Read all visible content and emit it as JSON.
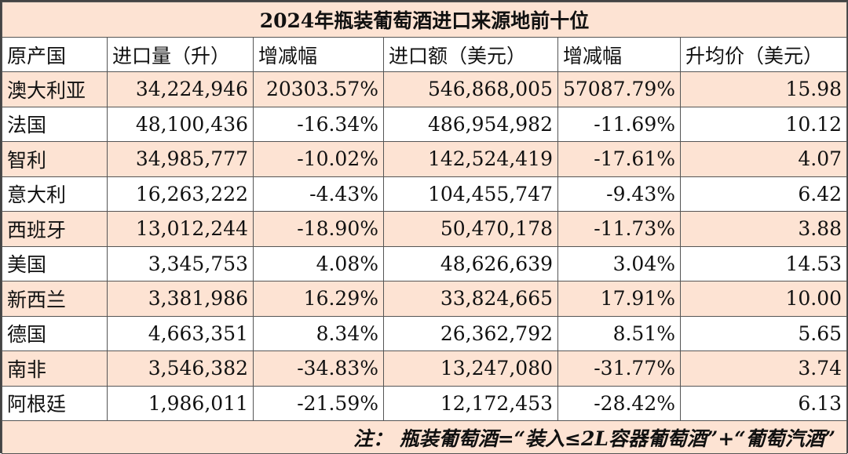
{
  "title": "2024年瓶装葡萄酒进口来源地前十位",
  "headers": [
    "原产国",
    "进口量（升）",
    "增减幅",
    "进口额（美元）",
    "增减幅",
    "升均价（美元）"
  ],
  "rows": [
    [
      "澳大利亚",
      "34,224,946",
      "20303.57%",
      "546,868,005",
      "57087.79%",
      "15.98"
    ],
    [
      "法国",
      "48,100,436",
      "-16.34%",
      "486,954,982",
      "-11.69%",
      "10.12"
    ],
    [
      "智利",
      "34,985,777",
      "-10.02%",
      "142,524,419",
      "-17.61%",
      "4.07"
    ],
    [
      "意大利",
      "16,263,222",
      "-4.43%",
      "104,455,747",
      "-9.43%",
      "6.42"
    ],
    [
      "西班牙",
      "13,012,244",
      "-18.90%",
      "50,470,178",
      "-11.73%",
      "3.88"
    ],
    [
      "美国",
      "3,345,753",
      "4.08%",
      "48,626,639",
      "3.04%",
      "14.53"
    ],
    [
      "新西兰",
      "3,381,986",
      "16.29%",
      "33,824,665",
      "17.91%",
      "10.00"
    ],
    [
      "德国",
      "4,663,351",
      "8.34%",
      "26,362,792",
      "8.51%",
      "5.65"
    ],
    [
      "南非",
      "3,546,382",
      "-34.83%",
      "13,247,080",
      "-31.77%",
      "3.74"
    ],
    [
      "阿根廷",
      "1,986,011",
      "-21.59%",
      "12,172,453",
      "-28.42%",
      "6.13"
    ]
  ],
  "note": "注：  瓶装葡萄酒=“装入≤2L容器葡萄酒”+“葡萄汽酒”",
  "colors": {
    "shade": "#fde3d3",
    "border": "#555555"
  }
}
